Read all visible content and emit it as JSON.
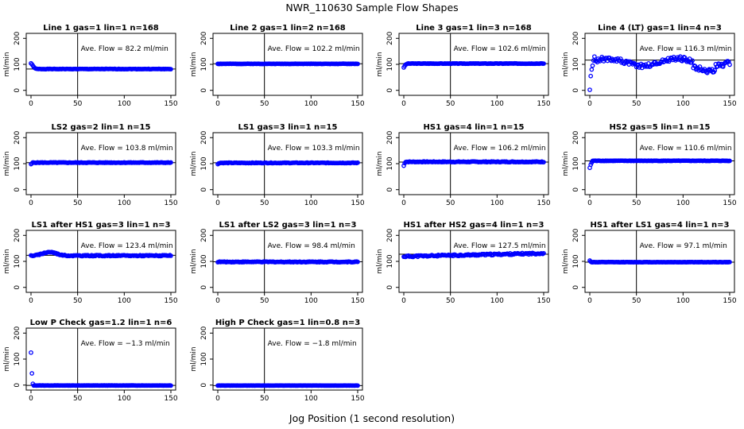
{
  "title": "NWR_110630  Sample Flow Shapes",
  "xlabel": "Jog Position (1 second resolution)",
  "colors": {
    "points": "#0000ff",
    "line": "#000000"
  },
  "chart_data": [
    {
      "type": "scatter",
      "title": "Line 1 gas=1 lin=1 n=168",
      "ylabel": "ml/min",
      "xlim": [
        0,
        150
      ],
      "ylim": [
        -10,
        210
      ],
      "xticks": [
        0,
        50,
        100,
        150
      ],
      "yticks": [
        0,
        100,
        200
      ],
      "vline_x": 50,
      "mean": 82.2,
      "annotation": "Ave. Flow =  82.2  ml/min",
      "shape": "decay",
      "base": 82,
      "spread": 0.8,
      "start": [
        104,
        100,
        95,
        90,
        86,
        84,
        83
      ],
      "seed": 1
    },
    {
      "type": "scatter",
      "title": "Line 2 gas=1 lin=2 n=168",
      "ylabel": "ml/min",
      "xlim": [
        0,
        150
      ],
      "ylim": [
        -10,
        210
      ],
      "xticks": [
        0,
        50,
        100,
        150
      ],
      "yticks": [
        0,
        100,
        200
      ],
      "vline_x": 50,
      "mean": 102.2,
      "annotation": "Ave. Flow =  102.2  ml/min",
      "shape": "flat",
      "base": 102,
      "spread": 0.6,
      "start": [],
      "seed": 2
    },
    {
      "type": "scatter",
      "title": "Line 3 gas=1 lin=3 n=168",
      "ylabel": "ml/min",
      "xlim": [
        0,
        150
      ],
      "ylim": [
        -10,
        210
      ],
      "xticks": [
        0,
        50,
        100,
        150
      ],
      "yticks": [
        0,
        100,
        200
      ],
      "vline_x": 50,
      "mean": 102.6,
      "annotation": "Ave. Flow =  102.6  ml/min",
      "shape": "flat",
      "base": 103,
      "spread": 0.8,
      "start": [
        88,
        94,
        99,
        101
      ],
      "seed": 3
    },
    {
      "type": "scatter",
      "title": "Line 4 (LT) gas=1 lin=4 n=3",
      "ylabel": "ml/min",
      "xlim": [
        0,
        150
      ],
      "ylim": [
        -10,
        210
      ],
      "xticks": [
        0,
        50,
        100,
        150
      ],
      "yticks": [
        0,
        100,
        200
      ],
      "vline_x": 50,
      "mean": 116.3,
      "annotation": "Ave. Flow =  116.3  ml/min",
      "shape": "wave",
      "base": 108,
      "spread": 18,
      "start": [
        2,
        55,
        80,
        95,
        115,
        130
      ],
      "seed": 4
    },
    {
      "type": "scatter",
      "title": "LS2 gas=2 lin=1 n=15",
      "ylabel": "ml/min",
      "xlim": [
        0,
        150
      ],
      "ylim": [
        -10,
        210
      ],
      "xticks": [
        0,
        50,
        100,
        150
      ],
      "yticks": [
        0,
        100,
        200
      ],
      "vline_x": 50,
      "mean": 103.8,
      "annotation": "Ave. Flow =  103.8  ml/min",
      "shape": "flat",
      "base": 104,
      "spread": 1.2,
      "start": [
        98,
        101
      ],
      "seed": 5
    },
    {
      "type": "scatter",
      "title": "LS1 gas=3 lin=1 n=15",
      "ylabel": "ml/min",
      "xlim": [
        0,
        150
      ],
      "ylim": [
        -10,
        210
      ],
      "xticks": [
        0,
        50,
        100,
        150
      ],
      "yticks": [
        0,
        100,
        200
      ],
      "vline_x": 50,
      "mean": 103.3,
      "annotation": "Ave. Flow =  103.3  ml/min",
      "shape": "flat",
      "base": 103,
      "spread": 1.2,
      "start": [
        98,
        101
      ],
      "seed": 6
    },
    {
      "type": "scatter",
      "title": "HS1 gas=4 lin=1 n=15",
      "ylabel": "ml/min",
      "xlim": [
        0,
        150
      ],
      "ylim": [
        -10,
        210
      ],
      "xticks": [
        0,
        50,
        100,
        150
      ],
      "yticks": [
        0,
        100,
        200
      ],
      "vline_x": 50,
      "mean": 106.2,
      "annotation": "Ave. Flow =  106.2  ml/min",
      "shape": "flat",
      "base": 107,
      "spread": 1.5,
      "start": [
        92,
        102
      ],
      "seed": 7
    },
    {
      "type": "scatter",
      "title": "HS2 gas=5 lin=1 n=15",
      "ylabel": "ml/min",
      "xlim": [
        0,
        150
      ],
      "ylim": [
        -10,
        210
      ],
      "xticks": [
        0,
        50,
        100,
        150
      ],
      "yticks": [
        0,
        100,
        200
      ],
      "vline_x": 50,
      "mean": 110.6,
      "annotation": "Ave. Flow =  110.6  ml/min",
      "shape": "flat",
      "base": 111,
      "spread": 0.8,
      "start": [
        84,
        96,
        104
      ],
      "seed": 8
    },
    {
      "type": "scatter",
      "title": "LS1 after HS1 gas=3 lin=1 n=3",
      "ylabel": "ml/min",
      "xlim": [
        0,
        150
      ],
      "ylim": [
        -10,
        210
      ],
      "xticks": [
        0,
        50,
        100,
        150
      ],
      "yticks": [
        0,
        100,
        200
      ],
      "vline_x": 50,
      "mean": 123.4,
      "annotation": "Ave. Flow =  123.4  ml/min",
      "shape": "hump",
      "base": 122,
      "spread": 2,
      "start": [],
      "seed": 9
    },
    {
      "type": "scatter",
      "title": "LS1 after LS2 gas=3 lin=1 n=3",
      "ylabel": "ml/min",
      "xlim": [
        0,
        150
      ],
      "ylim": [
        -10,
        210
      ],
      "xticks": [
        0,
        50,
        100,
        150
      ],
      "yticks": [
        0,
        100,
        200
      ],
      "vline_x": 50,
      "mean": 98.4,
      "annotation": "Ave. Flow =  98.4  ml/min",
      "shape": "flat",
      "base": 98,
      "spread": 1.5,
      "start": [],
      "seed": 10
    },
    {
      "type": "scatter",
      "title": "HS1 after HS2 gas=4 lin=1 n=3",
      "ylabel": "ml/min",
      "xlim": [
        0,
        150
      ],
      "ylim": [
        -10,
        210
      ],
      "xticks": [
        0,
        50,
        100,
        150
      ],
      "yticks": [
        0,
        100,
        200
      ],
      "vline_x": 50,
      "mean": 127.5,
      "annotation": "Ave. Flow =  127.5  ml/min",
      "shape": "rise",
      "base": 123,
      "spread": 3,
      "start": [],
      "seed": 11
    },
    {
      "type": "scatter",
      "title": "HS1 after LS1 gas=4 lin=1 n=3",
      "ylabel": "ml/min",
      "xlim": [
        0,
        150
      ],
      "ylim": [
        -10,
        210
      ],
      "xticks": [
        0,
        50,
        100,
        150
      ],
      "yticks": [
        0,
        100,
        200
      ],
      "vline_x": 50,
      "mean": 97.1,
      "annotation": "Ave. Flow =  97.1  ml/min",
      "shape": "flat",
      "base": 97,
      "spread": 0.6,
      "start": [
        103,
        99
      ],
      "seed": 12
    },
    {
      "type": "scatter",
      "title": "Low P Check gas=1.2 lin=1 n=6",
      "ylabel": "ml/min",
      "xlim": [
        0,
        150
      ],
      "ylim": [
        -10,
        210
      ],
      "xticks": [
        0,
        50,
        100,
        150
      ],
      "yticks": [
        0,
        100,
        200
      ],
      "vline_x": 50,
      "mean": -1.3,
      "annotation": "Ave. Flow =  −1.3  ml/min",
      "shape": "flat",
      "base": -1.5,
      "spread": 0.4,
      "start": [
        125,
        45,
        5
      ],
      "seed": 13
    },
    {
      "type": "scatter",
      "title": "High P Check gas=1 lin=0.8 n=3",
      "ylabel": "ml/min",
      "xlim": [
        0,
        150
      ],
      "ylim": [
        -10,
        210
      ],
      "xticks": [
        0,
        50,
        100,
        150
      ],
      "yticks": [
        0,
        100,
        200
      ],
      "vline_x": 50,
      "mean": -1.8,
      "annotation": "Ave. Flow =  −1.8  ml/min",
      "shape": "flat",
      "base": -1.8,
      "spread": 0.3,
      "start": [],
      "seed": 14
    }
  ]
}
